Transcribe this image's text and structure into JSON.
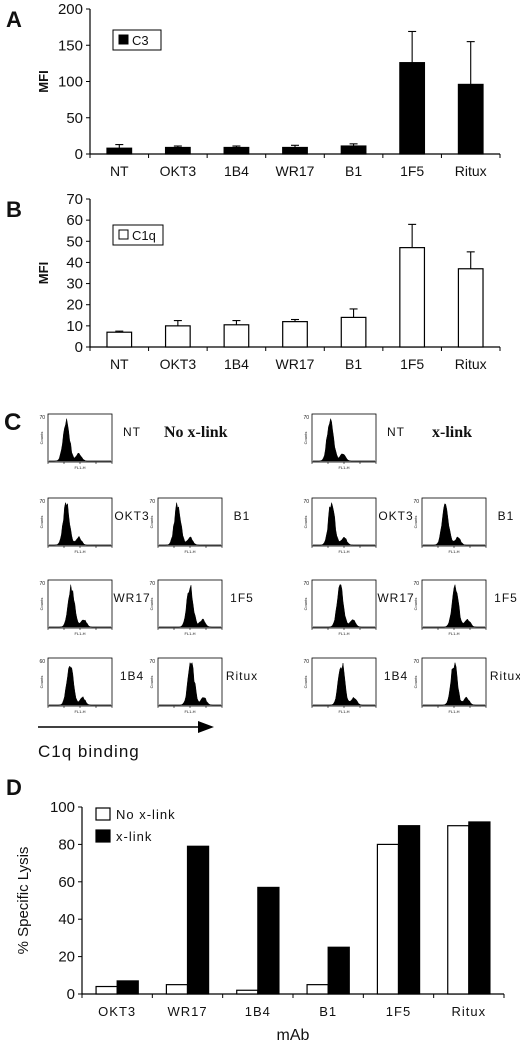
{
  "chart_data": [
    {
      "panel": "A",
      "type": "bar",
      "ylabel": "MFI",
      "ylim": [
        0,
        200
      ],
      "yticks": [
        0,
        50,
        100,
        150,
        200
      ],
      "categories": [
        "NT",
        "OKT3",
        "1B4",
        "WR17",
        "B1",
        "1F5",
        "Ritux"
      ],
      "legend": "C3",
      "series": [
        {
          "name": "C3",
          "color": "#000000",
          "values": [
            8,
            9,
            9,
            9,
            11,
            126,
            96
          ],
          "errors": [
            5,
            2,
            2,
            3,
            3,
            43,
            59
          ]
        }
      ]
    },
    {
      "panel": "B",
      "type": "bar",
      "ylabel": "MFI",
      "ylim": [
        0,
        70
      ],
      "yticks": [
        0,
        10,
        20,
        30,
        40,
        50,
        60,
        70
      ],
      "categories": [
        "NT",
        "OKT3",
        "1B4",
        "WR17",
        "B1",
        "1F5",
        "Ritux"
      ],
      "legend": "C1q",
      "series": [
        {
          "name": "C1q",
          "color": "#ffffff",
          "values": [
            7,
            10,
            10.5,
            12,
            14,
            47,
            37
          ],
          "errors": [
            0.5,
            2.5,
            2,
            1,
            4,
            11,
            8
          ]
        }
      ]
    },
    {
      "panel": "D",
      "type": "bar",
      "xlabel": "mAb",
      "ylabel": "% Specific Lysis",
      "ylim": [
        0,
        100
      ],
      "yticks": [
        0,
        20,
        40,
        60,
        80,
        100
      ],
      "categories": [
        "OKT3",
        "WR17",
        "1B4",
        "B1",
        "1F5",
        "Ritux"
      ],
      "series": [
        {
          "name": "No x-link",
          "color": "#ffffff",
          "values": [
            4,
            5,
            2,
            5,
            80,
            90
          ]
        },
        {
          "name": "x-link",
          "color": "#000000",
          "values": [
            7,
            79,
            57,
            25,
            90,
            92
          ]
        }
      ]
    }
  ],
  "panel_c": {
    "letter": "C",
    "no_xlink_title": "No x-link",
    "xlink_title": "x-link",
    "axis_label": "C1q binding",
    "y_axis_text": "Counts",
    "x_axis_text": "FL1-H",
    "no_xlink": [
      {
        "label": "NT",
        "ymax": "70",
        "peak": 0.28
      },
      {
        "label": "OKT3",
        "ymax": "70",
        "peak": 0.28
      },
      {
        "label": "B1",
        "ymax": "70",
        "peak": 0.3
      },
      {
        "label": "WR17",
        "ymax": "70",
        "peak": 0.36
      },
      {
        "label": "1F5",
        "ymax": "70",
        "peak": 0.5
      },
      {
        "label": "1B4",
        "ymax": "60",
        "peak": 0.34
      },
      {
        "label": "Ritux",
        "ymax": "70",
        "peak": 0.52
      }
    ],
    "xlink": [
      {
        "label": "NT",
        "ymax": "70",
        "peak": 0.28
      },
      {
        "label": "OKT3",
        "ymax": "70",
        "peak": 0.3
      },
      {
        "label": "B1",
        "ymax": "70",
        "peak": 0.36
      },
      {
        "label": "WR17",
        "ymax": "70",
        "peak": 0.44
      },
      {
        "label": "1F5",
        "ymax": "70",
        "peak": 0.52
      },
      {
        "label": "1B4",
        "ymax": "70",
        "peak": 0.46
      },
      {
        "label": "Ritux",
        "ymax": "70",
        "peak": 0.5
      }
    ]
  },
  "panel_letters": {
    "a": "A",
    "b": "B",
    "d": "D"
  }
}
